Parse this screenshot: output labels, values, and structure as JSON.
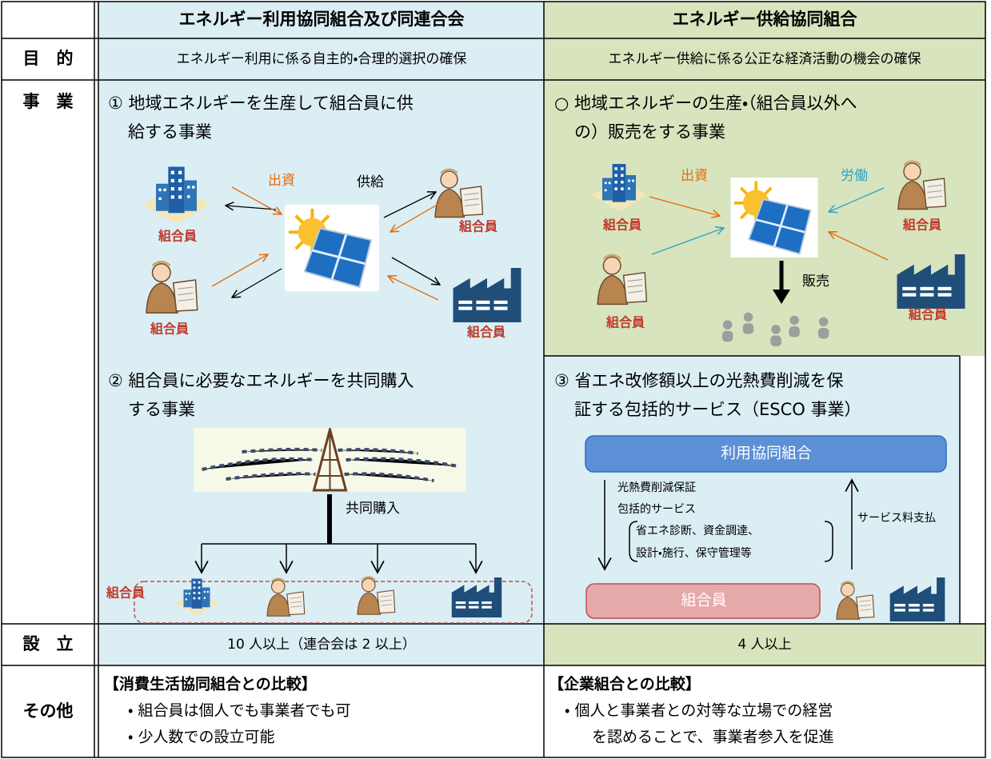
{
  "header": {
    "columns": [
      "エネルギー利用協同組合及び同連合会",
      "エネルギー供給協同組合"
    ]
  },
  "purpose": {
    "label": "目　的",
    "left": "エネルギー利用に係る自主的・合理的選択の確保",
    "right": "エネルギー供給に係る公正な経済活動の機会の確保"
  },
  "business": {
    "label": "事　業",
    "panels": [
      {
        "title_lines": [
          "①  地域エネルギーを生産して組合員に供",
          "給する事業"
        ],
        "labels": [
          "出資",
          "供給",
          "組合員",
          "組合員",
          "組合員",
          "組合員"
        ]
      },
      {
        "title_lines": [
          "○  地域エネルギーの生産・（組合員以外へ",
          "の）販売をする事業"
        ],
        "labels": [
          "出資",
          "労働",
          "販売",
          "組合員",
          "組合員",
          "組合員",
          "組合員"
        ]
      },
      {
        "title_lines": [
          "②  組合員に必要なエネルギーを共同購入",
          "する事業"
        ],
        "labels": [
          "共同購入",
          "組合員"
        ]
      },
      {
        "title_lines": [
          "③  省エネ改修額以上の光熱費削減を保",
          "証する包括的サービス（ESCO 事業）"
        ],
        "labels": [
          "利用協同組合",
          "光熱費削減保証",
          "包括的サービス",
          "省エネ診断、資金調達、",
          "設計・施行、保守管理等",
          "サービス料支払",
          "組合員"
        ]
      }
    ]
  },
  "establishment": {
    "label": "設　立",
    "left": "10 人以上（連合会は 2 以上）",
    "right": "4 人以上"
  },
  "other": {
    "label": "その他",
    "left": {
      "heading": "【消費生活協同組合との比較】",
      "lines": [
        "・ 組合員は個人でも事業者でも可",
        "・ 少人数での設立可能"
      ]
    },
    "right": {
      "heading": "【企業組合との比較】",
      "lines": [
        "・ 個人と事業者との対等な立場での経営",
        "を認めることで、事業者参入を促進"
      ]
    }
  }
}
